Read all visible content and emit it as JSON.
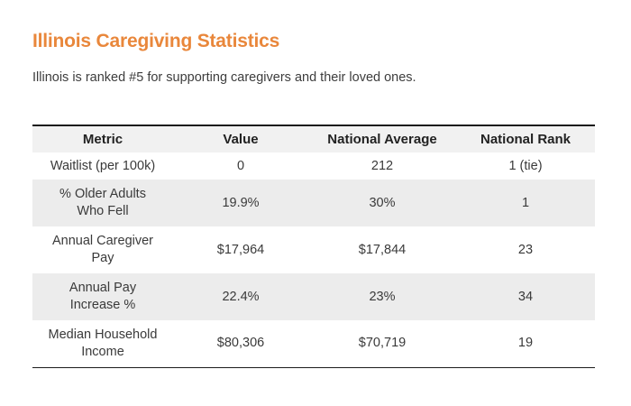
{
  "page": {
    "title": "Illinois Caregiving Statistics",
    "subtitle": "Illinois is ranked #5 for supporting caregivers and their loved ones."
  },
  "colors": {
    "accent_orange": "#E9873B",
    "header_bg": "#F1F1F1",
    "stripe_bg": "#ECECEC",
    "text_dark": "#3A3A3A",
    "heading_text": "#222222",
    "border_dark": "#1C1C1C"
  },
  "table": {
    "headers": [
      "Metric",
      "Value",
      "National Average",
      "National Rank"
    ],
    "rows": [
      {
        "metric": "Waitlist (per 100k)",
        "value": "0",
        "national_average": "212",
        "national_rank": "1 (tie)"
      },
      {
        "metric": "% Older Adults\nWho Fell",
        "value": "19.9%",
        "national_average": "30%",
        "national_rank": "1"
      },
      {
        "metric": "Annual Caregiver\nPay",
        "value": "$17,964",
        "national_average": "$17,844",
        "national_rank": "23"
      },
      {
        "metric": "Annual Pay\nIncrease %",
        "value": "22.4%",
        "national_average": "23%",
        "national_rank": "34"
      },
      {
        "metric": "Median Household\nIncome",
        "value": "$80,306",
        "national_average": "$70,719",
        "national_rank": "19"
      }
    ]
  }
}
